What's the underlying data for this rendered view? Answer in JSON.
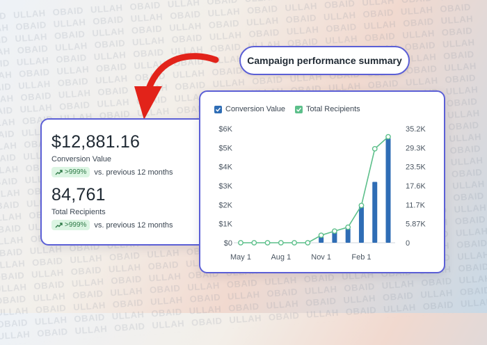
{
  "watermark": "OBAID ULLAH",
  "title_pill": "Campaign performance summary",
  "metrics": [
    {
      "value": "$12,881.16",
      "label": "Conversion Value",
      "badge": ">999%",
      "comparison": "vs. previous 12 months"
    },
    {
      "value": "84,761",
      "label": "Total Recipients",
      "badge": ">999%",
      "comparison": "vs. previous 12 months"
    }
  ],
  "colors": {
    "accent": "#5b5fd6",
    "bar": "#2f6db5",
    "line": "#5cbf8a",
    "arrow": "#e2231a",
    "badge_bg": "#dcf5e3",
    "badge_text": "#2f7a48"
  },
  "icons": {
    "badge": "trend-up-icon",
    "arrow": "curved-arrow-icon",
    "legend": "checkbox-check-icon"
  },
  "chart_data": {
    "type": "bar",
    "legend": [
      "Conversion Value",
      "Total Recipients"
    ],
    "x_tick_labels": [
      "May 1",
      "Aug 1",
      "Nov 1",
      "Feb 1"
    ],
    "y_left_ticks": [
      "$0",
      "$1K",
      "$2K",
      "$3K",
      "$4K",
      "$5K",
      "$6K"
    ],
    "y_right_ticks": [
      "0",
      "5.87K",
      "11.7K",
      "17.6K",
      "23.5K",
      "29.3K",
      "35.2K"
    ],
    "y_left_range": [
      0,
      6000
    ],
    "y_right_range": [
      0,
      35200
    ],
    "grid": false,
    "series": [
      {
        "name": "Conversion Value",
        "type": "bar",
        "values": [
          0,
          0,
          0,
          0,
          0,
          0,
          300,
          600,
          750,
          1900,
          3200,
          5500
        ]
      },
      {
        "name": "Total Recipients",
        "type": "line",
        "values": [
          0,
          0,
          0,
          0,
          0,
          0,
          2300,
          3600,
          4800,
          11500,
          29000,
          32700
        ]
      }
    ]
  }
}
